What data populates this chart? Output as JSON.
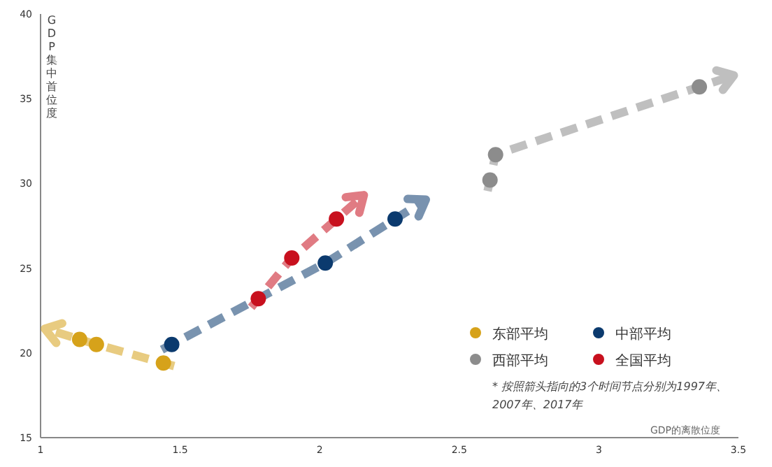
{
  "chart_data": {
    "type": "scatter",
    "ylabel": "GDP集中首位度",
    "xlabel": "GDP的离散位度",
    "xlim": [
      1,
      3.5
    ],
    "xticks": [
      1,
      1.5,
      2,
      2.5,
      3,
      3.5
    ],
    "ylim": [
      15,
      40
    ],
    "yticks": [
      15,
      20,
      25,
      30,
      35,
      40
    ],
    "marker": "circle",
    "legend": "bottom right",
    "grid": false,
    "series": [
      {
        "name": "东部平均",
        "color": "#d6a21a",
        "x": [
          1.44,
          1.2,
          1.14
        ],
        "values": [
          19.4,
          20.5,
          20.8
        ]
      },
      {
        "name": "中部平均",
        "color": "#0b3a6e",
        "x": [
          1.47,
          2.02,
          2.27
        ],
        "values": [
          20.5,
          25.3,
          27.9
        ]
      },
      {
        "name": "西部平均",
        "color": "#8c8c8c",
        "x": [
          2.61,
          2.63,
          3.36
        ],
        "values": [
          30.2,
          31.7,
          35.7
        ]
      },
      {
        "name": "全国平均",
        "color": "#c8101e",
        "x": [
          1.78,
          1.9,
          2.06
        ],
        "values": [
          23.2,
          25.6,
          27.9
        ]
      }
    ],
    "annotations": [
      "* 按照箭头指向的3个时间节点分别为1997年、2007年、2017年"
    ]
  }
}
